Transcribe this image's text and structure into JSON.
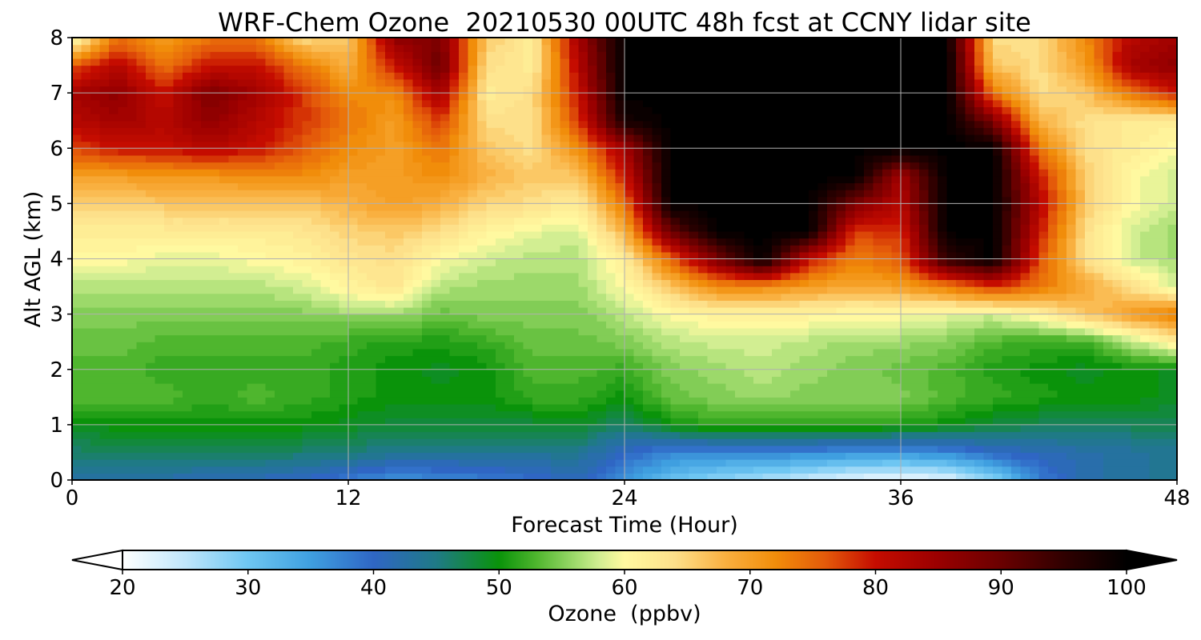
{
  "chart_data": {
    "type": "heatmap",
    "subtype": "filled-contour",
    "title": "WRF-Chem Ozone  20210530 00UTC 48h fcst at CCNY lidar site",
    "xlabel": "Forecast Time (Hour)",
    "ylabel": "Alt AGL (km)",
    "xlim": [
      0,
      48
    ],
    "ylim": [
      0,
      8
    ],
    "xticks": [
      0,
      12,
      24,
      36,
      48
    ],
    "yticks": [
      0,
      1,
      2,
      3,
      4,
      5,
      6,
      7,
      8
    ],
    "grid": true,
    "x": [
      0,
      2,
      4,
      6,
      8,
      10,
      12,
      14,
      16,
      18,
      20,
      22,
      24,
      26,
      28,
      30,
      32,
      34,
      36,
      38,
      40,
      42,
      44,
      46,
      48
    ],
    "y": [
      0,
      0.5,
      1,
      1.5,
      2,
      2.5,
      3,
      3.5,
      4,
      4.5,
      5,
      5.5,
      6,
      6.5,
      7,
      7.5,
      8
    ],
    "z": [
      [
        43,
        42,
        42,
        41,
        41,
        40,
        38,
        36,
        37,
        38,
        39,
        41,
        36,
        31,
        28,
        26,
        24,
        22,
        21,
        22,
        28,
        38,
        42,
        43,
        44
      ],
      [
        46,
        47,
        47,
        47,
        47,
        46,
        46,
        44,
        44,
        44,
        44,
        44,
        40,
        37,
        37,
        37,
        37,
        36,
        36,
        37,
        40,
        41,
        42,
        43,
        44
      ],
      [
        49,
        50,
        50,
        50,
        50,
        50,
        49,
        48,
        48,
        48,
        48,
        49,
        46,
        50,
        52,
        52,
        52,
        52,
        51,
        50,
        48,
        47,
        47,
        47,
        47
      ],
      [
        53,
        53,
        53,
        52,
        53,
        52,
        51,
        50,
        50,
        50,
        52,
        52,
        50,
        54,
        55,
        56,
        55,
        55,
        55,
        53,
        52,
        51,
        50,
        50,
        49
      ],
      [
        53,
        53,
        52,
        52,
        52,
        52,
        51,
        50,
        49,
        50,
        53,
        53,
        52,
        55,
        56,
        57,
        56,
        55,
        54,
        53,
        51,
        50,
        49,
        50,
        49
      ],
      [
        54,
        54,
        53,
        53,
        53,
        53,
        52,
        51,
        51,
        52,
        54,
        54,
        55,
        57,
        58,
        58,
        57,
        56,
        56,
        55,
        53,
        52,
        52,
        57,
        62
      ],
      [
        55,
        55,
        55,
        55,
        55,
        55,
        56,
        56,
        54,
        55,
        55,
        55,
        57,
        60,
        61,
        61,
        61,
        60,
        60,
        59,
        58,
        61,
        66,
        70,
        74
      ],
      [
        57,
        57,
        57,
        57,
        57,
        58,
        61,
        63,
        57,
        56,
        56,
        56,
        60,
        66,
        72,
        72,
        70,
        69,
        70,
        73,
        78,
        74,
        69,
        64,
        58
      ],
      [
        60,
        60,
        59,
        59,
        60,
        61,
        63,
        64,
        60,
        58,
        57,
        57,
        62,
        75,
        88,
        100,
        80,
        73,
        76,
        95,
        100,
        77,
        64,
        58,
        56
      ],
      [
        62,
        62,
        62,
        62,
        62,
        63,
        65,
        66,
        64,
        61,
        59,
        58,
        68,
        90,
        100,
        100,
        100,
        78,
        78,
        100,
        100,
        80,
        64,
        58,
        56
      ],
      [
        65,
        65,
        66,
        66,
        66,
        66,
        68,
        70,
        68,
        65,
        64,
        62,
        74,
        100,
        100,
        100,
        100,
        88,
        82,
        100,
        100,
        82,
        66,
        60,
        58
      ],
      [
        70,
        70,
        71,
        71,
        72,
        72,
        70,
        70,
        72,
        68,
        66,
        66,
        80,
        100,
        100,
        100,
        100,
        100,
        84,
        100,
        100,
        80,
        66,
        60,
        58
      ],
      [
        77,
        80,
        80,
        82,
        80,
        76,
        72,
        70,
        74,
        66,
        64,
        72,
        84,
        100,
        100,
        100,
        100,
        100,
        100,
        100,
        100,
        74,
        64,
        62,
        60
      ],
      [
        82,
        84,
        82,
        86,
        82,
        78,
        74,
        70,
        78,
        64,
        64,
        78,
        98,
        100,
        100,
        100,
        100,
        100,
        100,
        100,
        88,
        68,
        64,
        62,
        62
      ],
      [
        84,
        86,
        80,
        88,
        84,
        78,
        72,
        72,
        84,
        62,
        64,
        80,
        100,
        100,
        100,
        100,
        100,
        100,
        100,
        100,
        74,
        64,
        66,
        74,
        80
      ],
      [
        76,
        82,
        74,
        80,
        80,
        74,
        68,
        80,
        90,
        64,
        62,
        82,
        100,
        100,
        100,
        100,
        100,
        100,
        100,
        100,
        66,
        64,
        70,
        84,
        86
      ],
      [
        58,
        74,
        70,
        74,
        74,
        64,
        66,
        86,
        88,
        66,
        62,
        84,
        100,
        100,
        100,
        100,
        100,
        100,
        100,
        100,
        64,
        64,
        72,
        82,
        84
      ]
    ],
    "colorbar": {
      "label": "Ozone  (ppbv)",
      "ticks": [
        20,
        30,
        40,
        50,
        60,
        70,
        80,
        90,
        100
      ],
      "range": [
        20,
        100
      ],
      "extend": "both",
      "orientation": "horizontal"
    },
    "colormap": [
      [
        20,
        "#ffffff"
      ],
      [
        25,
        "#bfe6fb"
      ],
      [
        30,
        "#6ec6f2"
      ],
      [
        35,
        "#3f9fe0"
      ],
      [
        40,
        "#2f66c4"
      ],
      [
        45,
        "#1f7a86"
      ],
      [
        50,
        "#0a930a"
      ],
      [
        53,
        "#4fb62e"
      ],
      [
        56,
        "#9cd96a"
      ],
      [
        58,
        "#d2ee92"
      ],
      [
        60,
        "#fff9a0"
      ],
      [
        64,
        "#fde08a"
      ],
      [
        68,
        "#f9b040"
      ],
      [
        72,
        "#f18d0a"
      ],
      [
        76,
        "#e45a0a"
      ],
      [
        80,
        "#c50c00"
      ],
      [
        85,
        "#9a0000"
      ],
      [
        90,
        "#6a0000"
      ],
      [
        95,
        "#300000"
      ],
      [
        100,
        "#000000"
      ]
    ]
  }
}
